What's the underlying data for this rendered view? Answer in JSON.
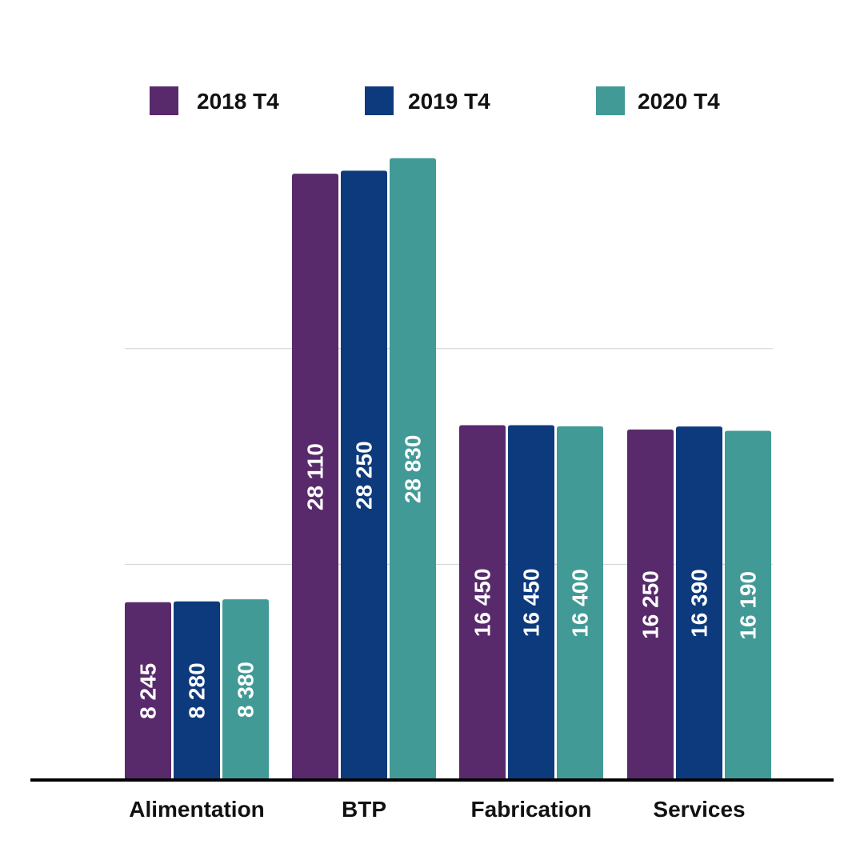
{
  "chart_data": {
    "type": "bar",
    "title": "",
    "xlabel": "",
    "ylabel": "",
    "categories": [
      "Alimentation",
      "BTP",
      "Fabrication",
      "Services"
    ],
    "series": [
      {
        "name": "2018 T4",
        "color": "#582a6b",
        "values": [
          8245,
          28110,
          16450,
          16250
        ]
      },
      {
        "name": "2019 T4",
        "color": "#0d3a7c",
        "values": [
          8280,
          28250,
          16450,
          16390
        ]
      },
      {
        "name": "2020 T4",
        "color": "#429a97",
        "values": [
          8380,
          28830,
          16400,
          16190
        ]
      }
    ],
    "ylim": [
      0,
      29000
    ],
    "gridlines": [
      10000,
      20000
    ],
    "grid": true,
    "legend": "top",
    "data_labels": [
      [
        "8 245",
        "28 110",
        "16 450",
        "16 250"
      ],
      [
        "8 280",
        "28 250",
        "16 450",
        "16 390"
      ],
      [
        "8 380",
        "28 830",
        "16 400",
        "16 190"
      ]
    ]
  }
}
